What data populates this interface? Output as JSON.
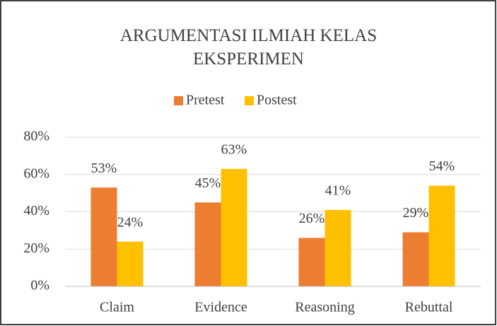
{
  "chart_data": {
    "type": "bar",
    "title": "ARGUMENTASI ILMIAH KELAS EKSPERIMEN",
    "categories": [
      "Claim",
      "Evidence",
      "Reasoning",
      "Rebuttal"
    ],
    "series": [
      {
        "name": "Pretest",
        "color": "#ed7d31",
        "values": [
          53,
          45,
          26,
          29
        ],
        "value_labels": [
          "53%",
          "45%",
          "26%",
          "29%"
        ]
      },
      {
        "name": "Postest",
        "color": "#ffc000",
        "values": [
          24,
          63,
          41,
          54
        ],
        "value_labels": [
          "24%",
          "63%",
          "41%",
          "54%"
        ]
      }
    ],
    "ylim": [
      0,
      80
    ],
    "yticks": [
      {
        "value": 0,
        "label": "0%"
      },
      {
        "value": 20,
        "label": "20%"
      },
      {
        "value": 40,
        "label": "40%"
      },
      {
        "value": 60,
        "label": "60%"
      },
      {
        "value": 80,
        "label": "80%"
      }
    ],
    "grid": true,
    "legend": "top"
  }
}
